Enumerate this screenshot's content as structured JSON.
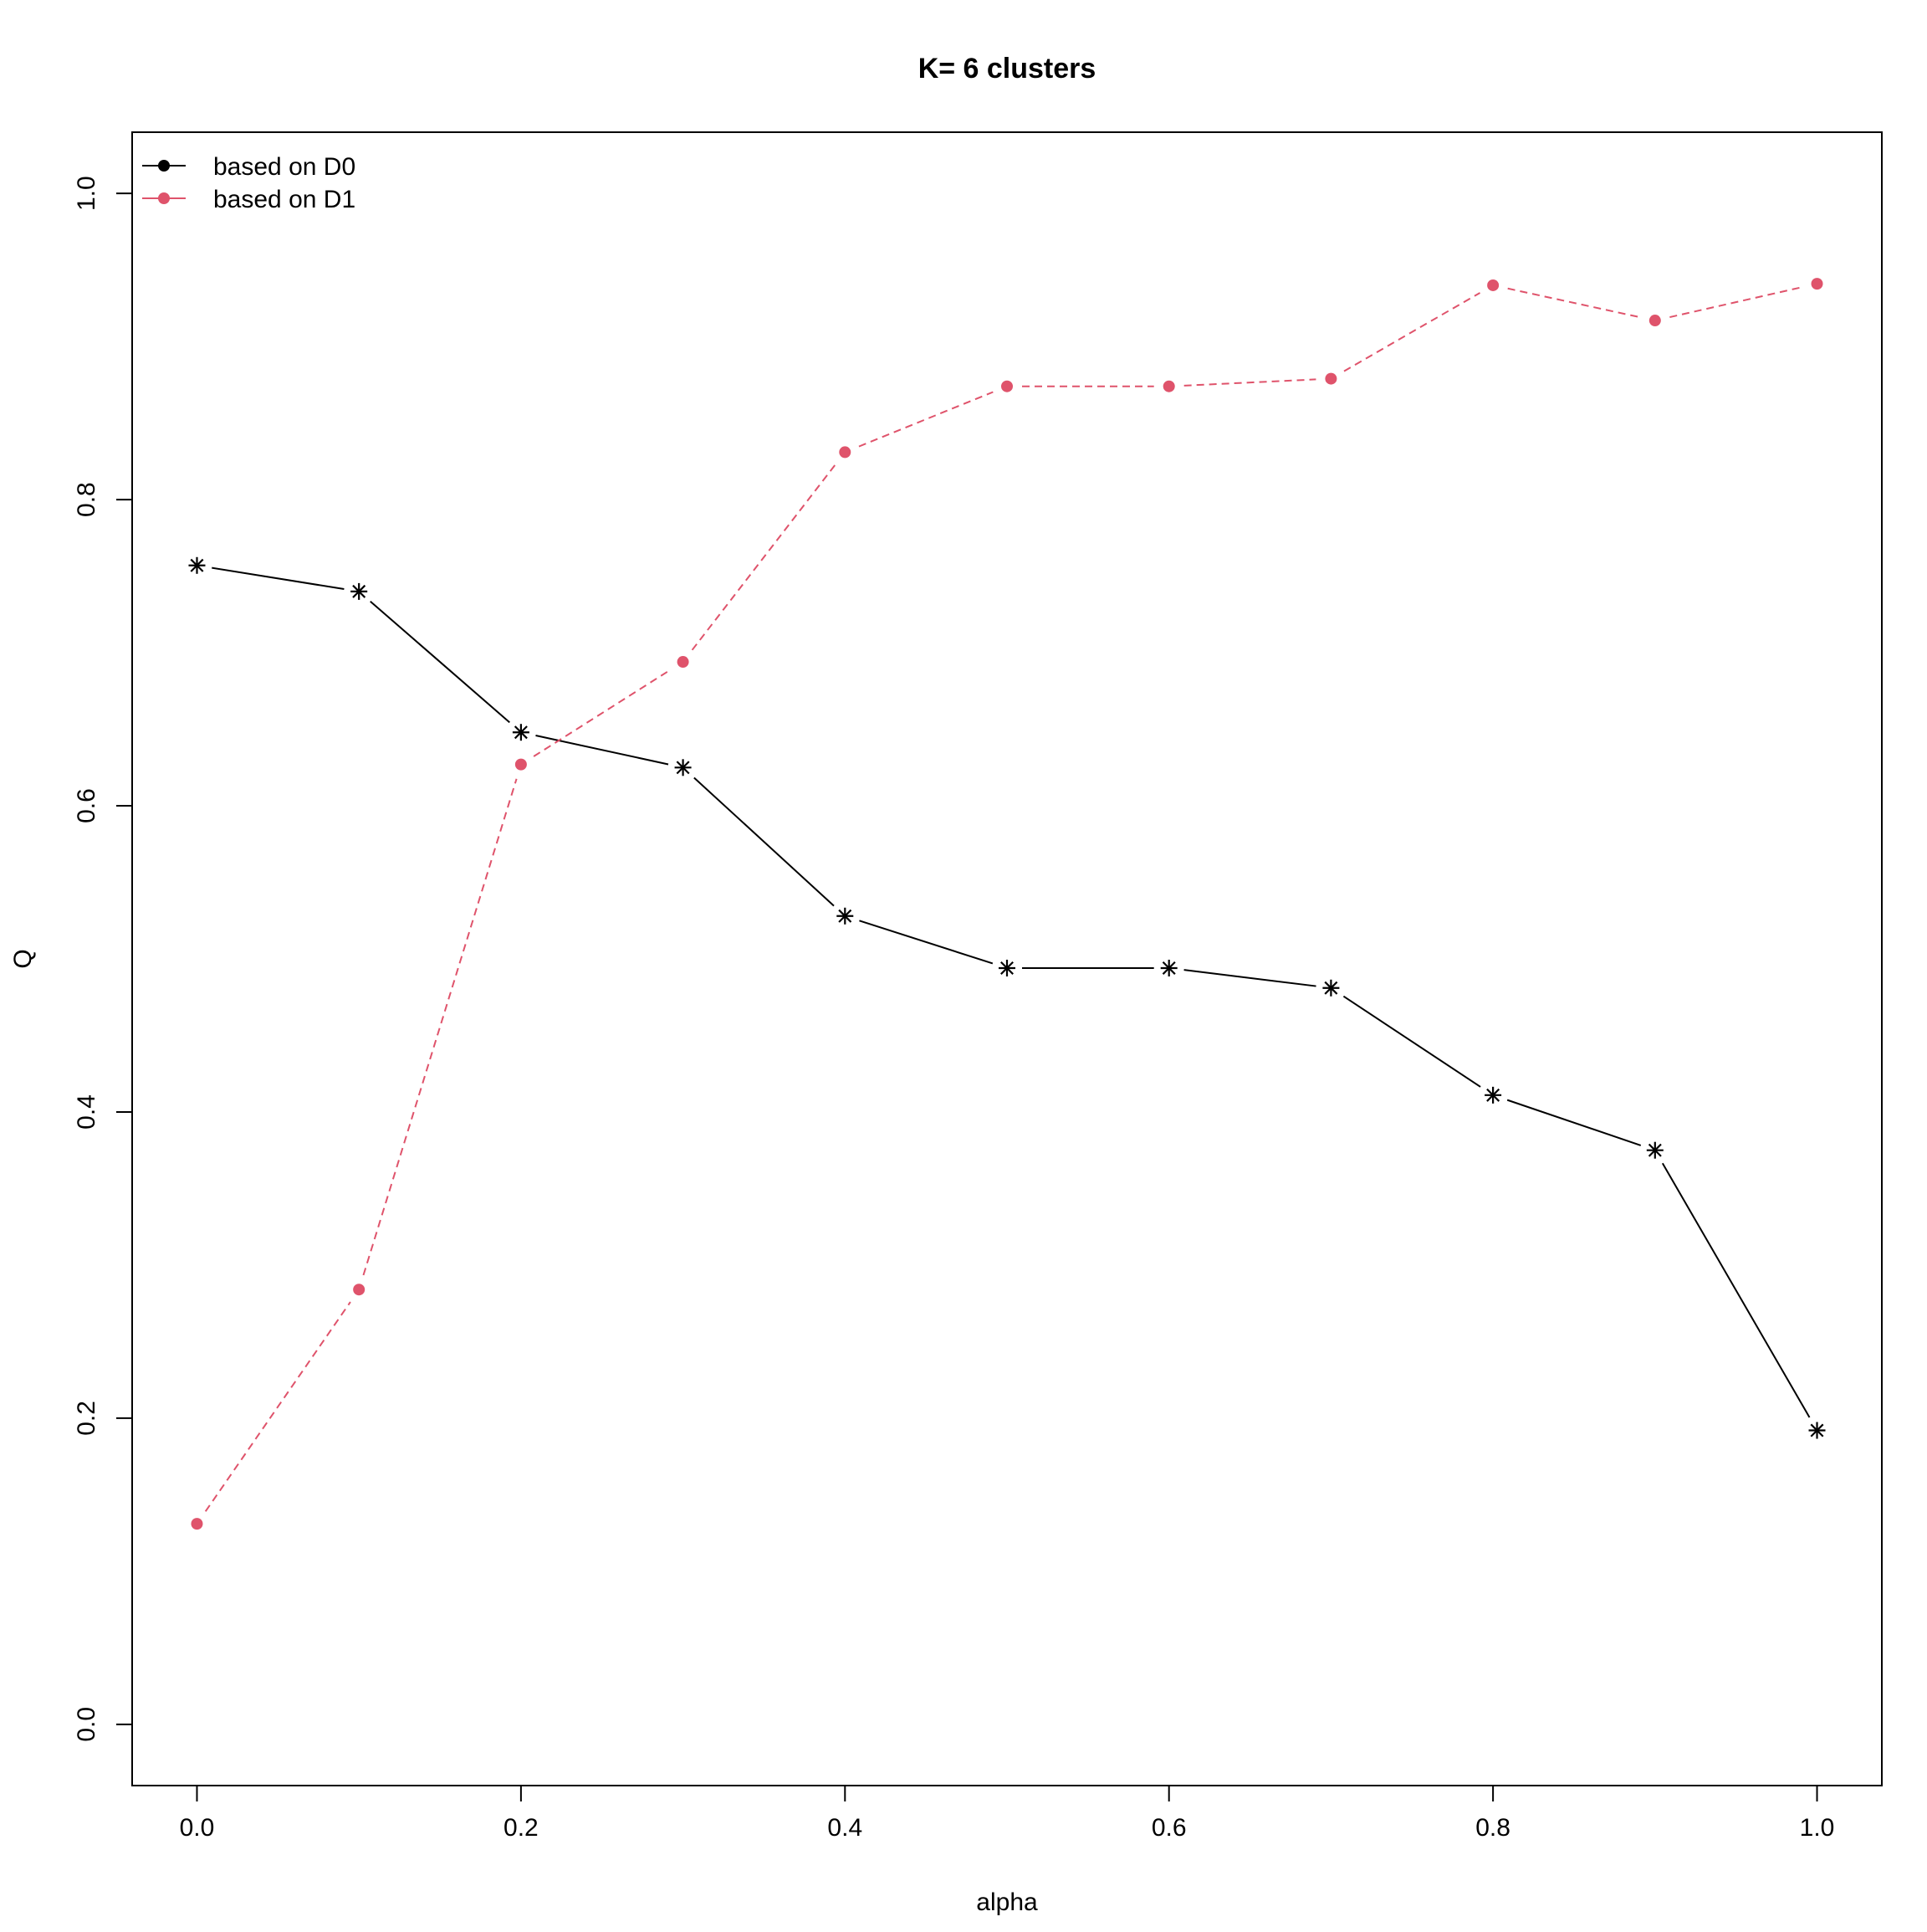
{
  "chart_data": {
    "type": "line",
    "title": "K= 6 clusters",
    "xlabel": "alpha",
    "ylabel": "Q",
    "xlim": [
      -0.04,
      1.04
    ],
    "ylim": [
      -0.04,
      1.04
    ],
    "x_ticks": [
      0.0,
      0.2,
      0.4,
      0.6,
      0.8,
      1.0
    ],
    "x_tick_labels": [
      "0.0",
      "0.2",
      "0.4",
      "0.6",
      "0.8",
      "1.0"
    ],
    "y_ticks": [
      0.0,
      0.2,
      0.4,
      0.6,
      0.8,
      1.0
    ],
    "y_tick_labels": [
      "0.0",
      "0.2",
      "0.4",
      "0.6",
      "0.8",
      "1.0"
    ],
    "grid": false,
    "legend_position": "top-left",
    "x": [
      0.0,
      0.1,
      0.2,
      0.3,
      0.4,
      0.5,
      0.6,
      0.7,
      0.8,
      0.9,
      1.0
    ],
    "series": [
      {
        "name": "based on D0",
        "color": "#000000",
        "line_style": "solid",
        "marker": "asterisk",
        "legend_marker": "filled-circle",
        "values": [
          0.757,
          0.74,
          0.648,
          0.625,
          0.528,
          0.494,
          0.494,
          0.481,
          0.411,
          0.375,
          0.192
        ]
      },
      {
        "name": "based on D1",
        "color": "#DF536B",
        "line_style": "dashed",
        "marker": "filled-circle",
        "legend_marker": "filled-circle",
        "values": [
          0.131,
          0.284,
          0.627,
          0.694,
          0.831,
          0.874,
          0.874,
          0.879,
          0.94,
          0.917,
          0.941
        ]
      }
    ]
  }
}
